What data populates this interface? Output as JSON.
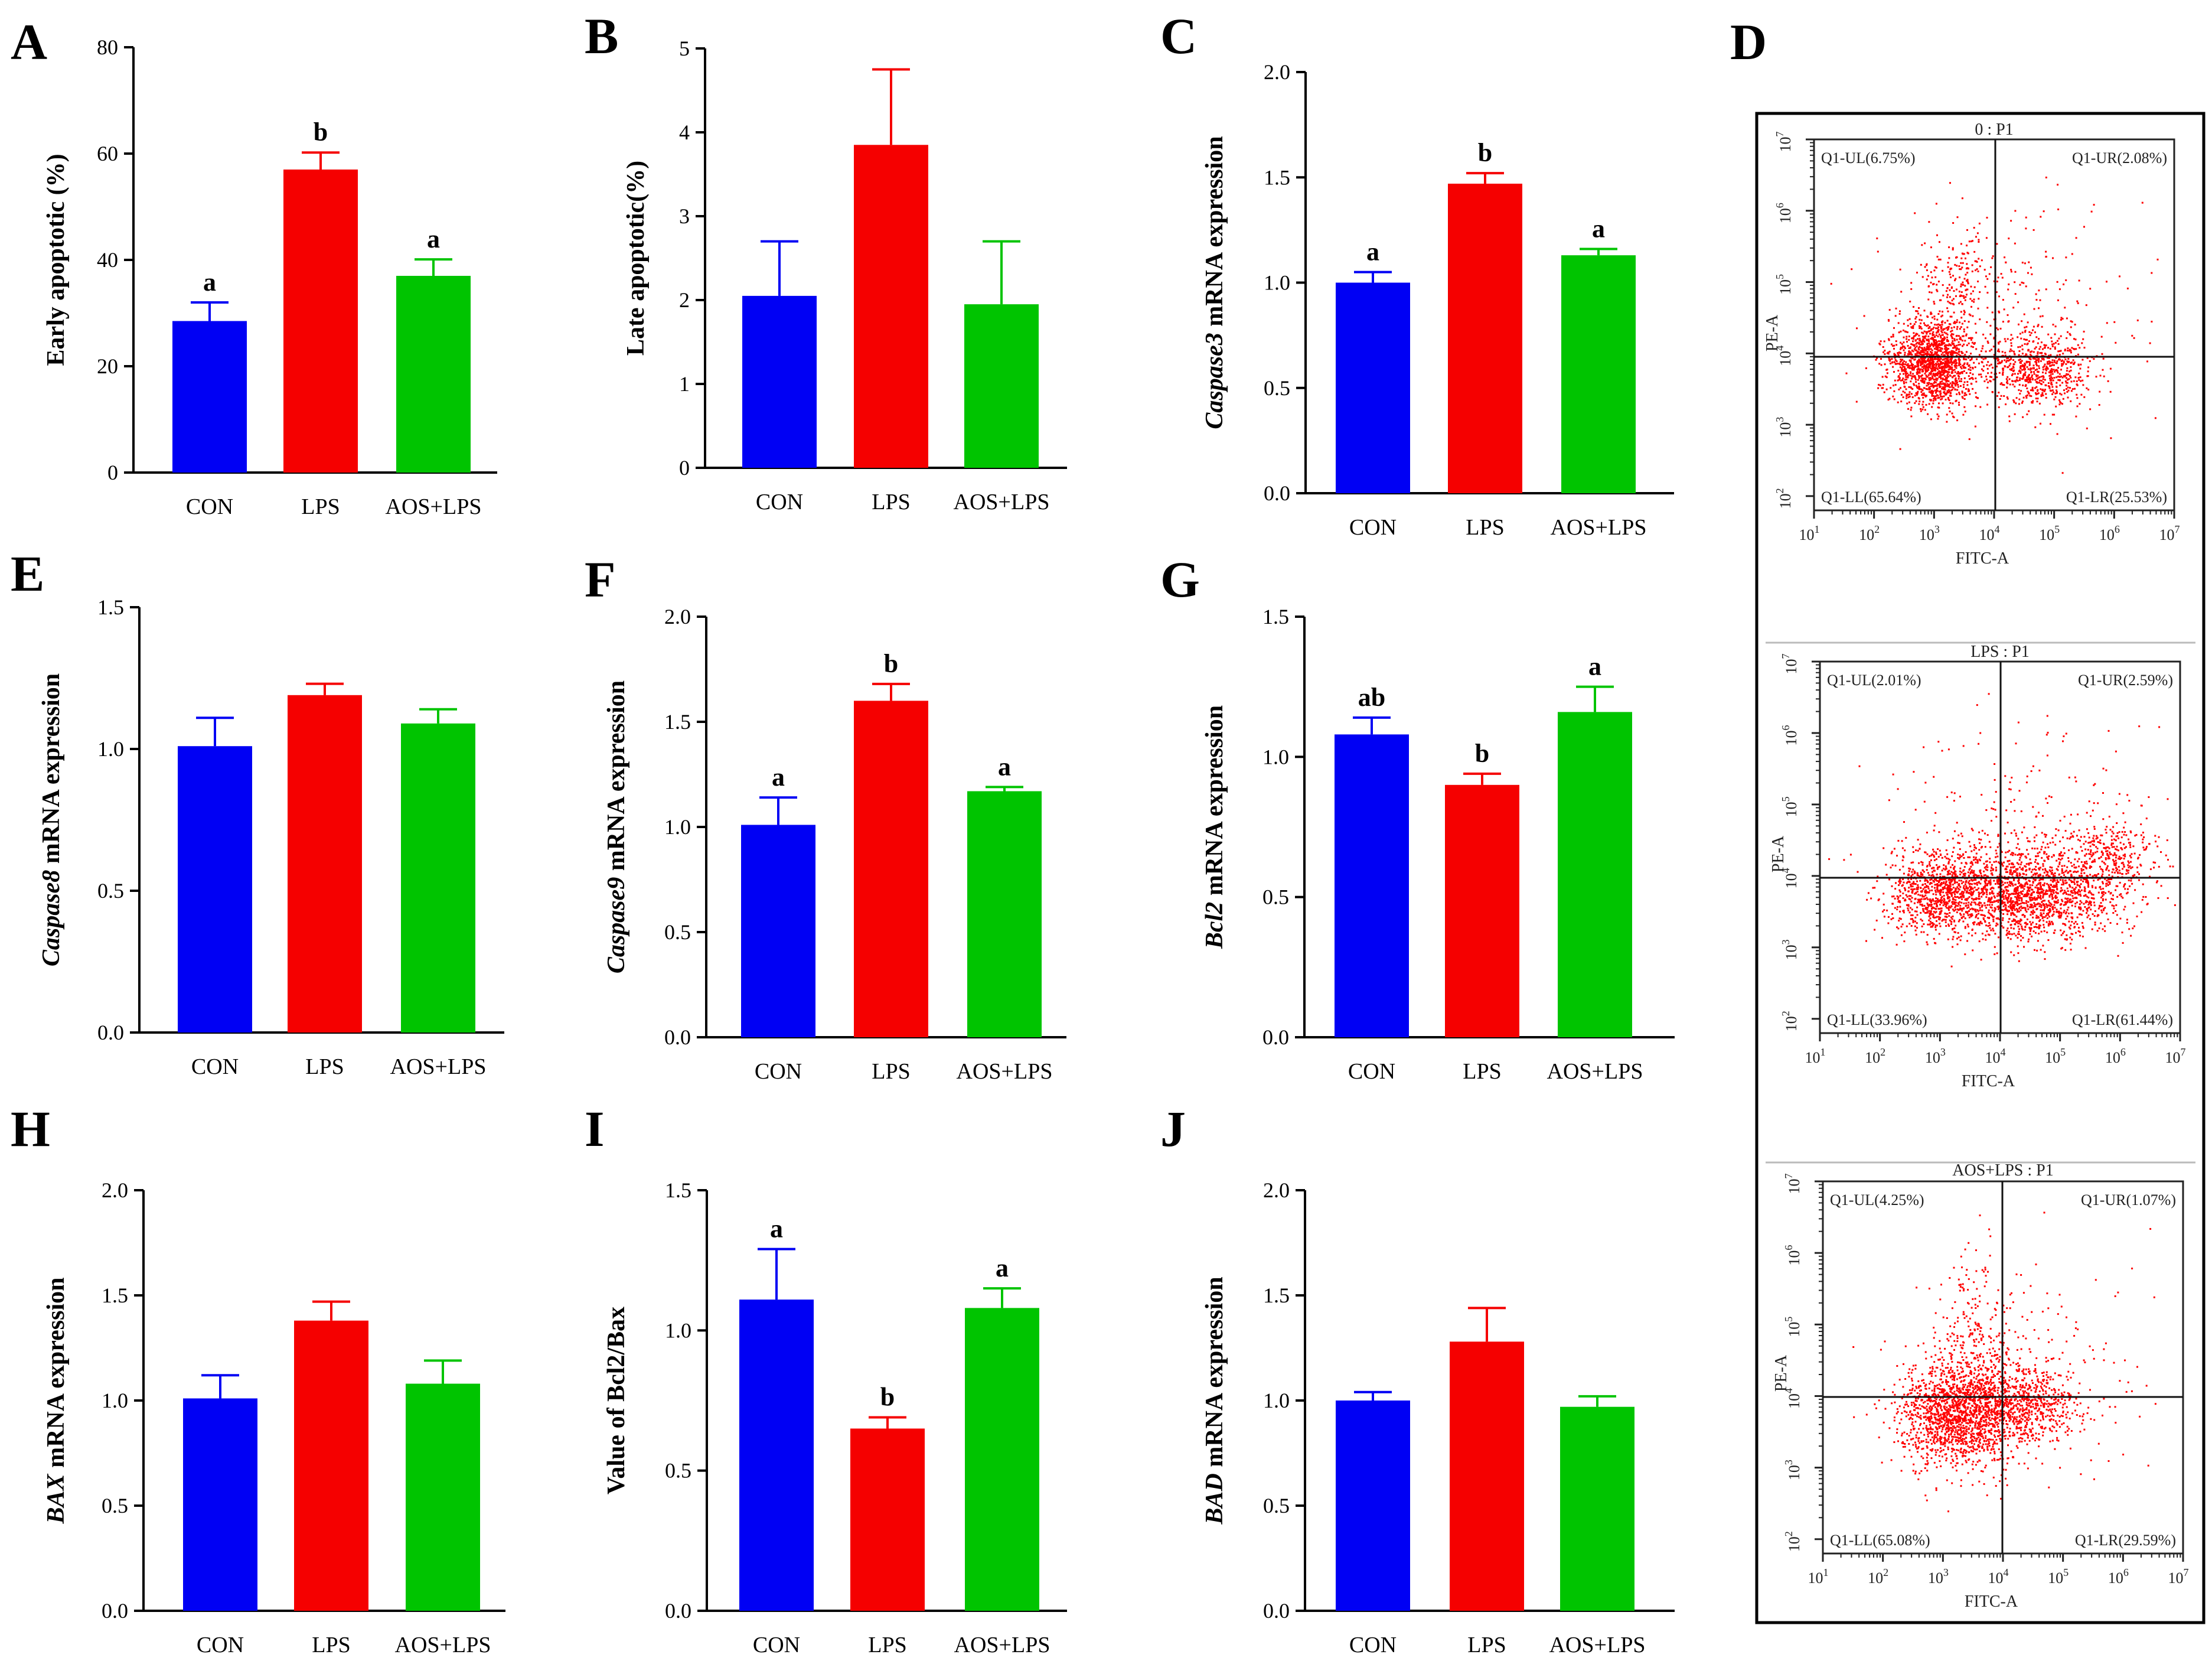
{
  "colors": {
    "con": "#0000f4",
    "lps": "#f50000",
    "aos": "#00c400",
    "scatter": "#ff0000",
    "axis": "#000000"
  },
  "chart_data": [
    {
      "id": "A",
      "type": "bar",
      "letter": "A",
      "ylabel": "Early apoptotic (%)",
      "ylim": [
        0,
        80
      ],
      "ticks": [
        0,
        20,
        40,
        60,
        80
      ],
      "categories": [
        "CON",
        "LPS",
        "AOS+LPS"
      ],
      "values": [
        28.5,
        57,
        37
      ],
      "errors": [
        3.5,
        3.2,
        3.1
      ],
      "sig": [
        "a",
        "b",
        "a"
      ]
    },
    {
      "id": "B",
      "type": "bar",
      "letter": "B",
      "ylabel": "Late apoptotic(%)",
      "ylim": [
        0,
        5
      ],
      "ticks": [
        0,
        1,
        2,
        3,
        4,
        5
      ],
      "categories": [
        "CON",
        "LPS",
        "AOS+LPS"
      ],
      "values": [
        2.05,
        3.85,
        1.95
      ],
      "errors": [
        0.65,
        0.9,
        0.75
      ],
      "sig": [
        "",
        "",
        ""
      ]
    },
    {
      "id": "C",
      "type": "bar",
      "letter": "C",
      "ylabel_italic": "Caspase3",
      "ylabel_rest": " mRNA expression",
      "ylim": [
        0,
        2
      ],
      "ticks": [
        "0.0",
        "0.5",
        "1.0",
        "1.5",
        "2.0"
      ],
      "categories": [
        "CON",
        "LPS",
        "AOS+LPS"
      ],
      "values": [
        1.0,
        1.47,
        1.13
      ],
      "errors": [
        0.05,
        0.05,
        0.03
      ],
      "sig": [
        "a",
        "b",
        "a"
      ]
    },
    {
      "id": "E",
      "type": "bar",
      "letter": "E",
      "ylabel_italic": "Caspase8",
      "ylabel_rest": " mRNA expression",
      "ylim": [
        0,
        1.5
      ],
      "ticks": [
        "0.0",
        "0.5",
        "1.0",
        "1.5"
      ],
      "categories": [
        "CON",
        "LPS",
        "AOS+LPS"
      ],
      "values": [
        1.01,
        1.19,
        1.09
      ],
      "errors": [
        0.1,
        0.04,
        0.05
      ],
      "sig": [
        "",
        "",
        ""
      ]
    },
    {
      "id": "F",
      "type": "bar",
      "letter": "F",
      "ylabel_italic": "Caspase9",
      "ylabel_rest": " mRNA expression",
      "ylim": [
        0,
        2
      ],
      "ticks": [
        "0.0",
        "0.5",
        "1.0",
        "1.5",
        "2.0"
      ],
      "categories": [
        "CON",
        "LPS",
        "AOS+LPS"
      ],
      "values": [
        1.01,
        1.6,
        1.17
      ],
      "errors": [
        0.13,
        0.08,
        0.02
      ],
      "sig": [
        "a",
        "b",
        "a"
      ]
    },
    {
      "id": "G",
      "type": "bar",
      "letter": "G",
      "ylabel_italic": "Bcl2",
      "ylabel_rest": " mRNA expression",
      "ylim": [
        0,
        1.5
      ],
      "ticks": [
        "0.0",
        "0.5",
        "1.0",
        "1.5"
      ],
      "categories": [
        "CON",
        "LPS",
        "AOS+LPS"
      ],
      "values": [
        1.08,
        0.9,
        1.16
      ],
      "errors": [
        0.06,
        0.04,
        0.09
      ],
      "sig": [
        "ab",
        "b",
        "a"
      ]
    },
    {
      "id": "H",
      "type": "bar",
      "letter": "H",
      "ylabel_italic": "BAX",
      "ylabel_rest": " mRNA expression",
      "ylim": [
        0,
        2
      ],
      "ticks": [
        "0.0",
        "0.5",
        "1.0",
        "1.5",
        "2.0"
      ],
      "categories": [
        "CON",
        "LPS",
        "AOS+LPS"
      ],
      "values": [
        1.01,
        1.38,
        1.08
      ],
      "errors": [
        0.11,
        0.09,
        0.11
      ],
      "sig": [
        "",
        "",
        ""
      ]
    },
    {
      "id": "I",
      "type": "bar",
      "letter": "I",
      "ylabel": "Value of Bcl2/Bax",
      "ylim": [
        0,
        1.5
      ],
      "ticks": [
        "0.0",
        "0.5",
        "1.0",
        "1.5"
      ],
      "categories": [
        "CON",
        "LPS",
        "AOS+LPS"
      ],
      "values": [
        1.11,
        0.65,
        1.08
      ],
      "errors": [
        0.18,
        0.04,
        0.07
      ],
      "sig": [
        "a",
        "b",
        "a"
      ]
    },
    {
      "id": "J",
      "type": "bar",
      "letter": "J",
      "ylabel_italic": "BAD",
      "ylabel_rest": " mRNA expression",
      "ylim": [
        0,
        2
      ],
      "ticks": [
        "0.0",
        "0.5",
        "1.0",
        "1.5",
        "2.0"
      ],
      "categories": [
        "CON",
        "LPS",
        "AOS+LPS"
      ],
      "values": [
        1.0,
        1.28,
        0.97
      ],
      "errors": [
        0.04,
        0.16,
        0.05
      ],
      "sig": [
        "",
        "",
        ""
      ]
    }
  ],
  "flow": {
    "letter": "D",
    "x_label": "FITC-A",
    "y_label": "PE-A",
    "tick_labels": [
      "10",
      "10",
      "10",
      "10",
      "10",
      "10",
      "10"
    ],
    "tick_exponents": [
      "1",
      "2",
      "3",
      "4",
      "5",
      "6",
      "7"
    ],
    "panels": [
      {
        "id": "d1",
        "title": "0 : P1",
        "ul": "Q1-UL(6.75%)",
        "ur": "Q1-UR(2.08%)",
        "ll": "Q1-LL(65.64%)",
        "lr": "Q1-LR(25.53%)"
      },
      {
        "id": "d2",
        "title": "LPS : P1",
        "ul": "Q1-UL(2.01%)",
        "ur": "Q1-UR(2.59%)",
        "ll": "Q1-LL(33.96%)",
        "lr": "Q1-LR(61.44%)"
      },
      {
        "id": "d3",
        "title": "AOS+LPS : P1",
        "ul": "Q1-UL(4.25%)",
        "ur": "Q1-UR(1.07%)",
        "ll": "Q1-LL(65.08%)",
        "lr": "Q1-LR(29.59%)"
      }
    ]
  }
}
